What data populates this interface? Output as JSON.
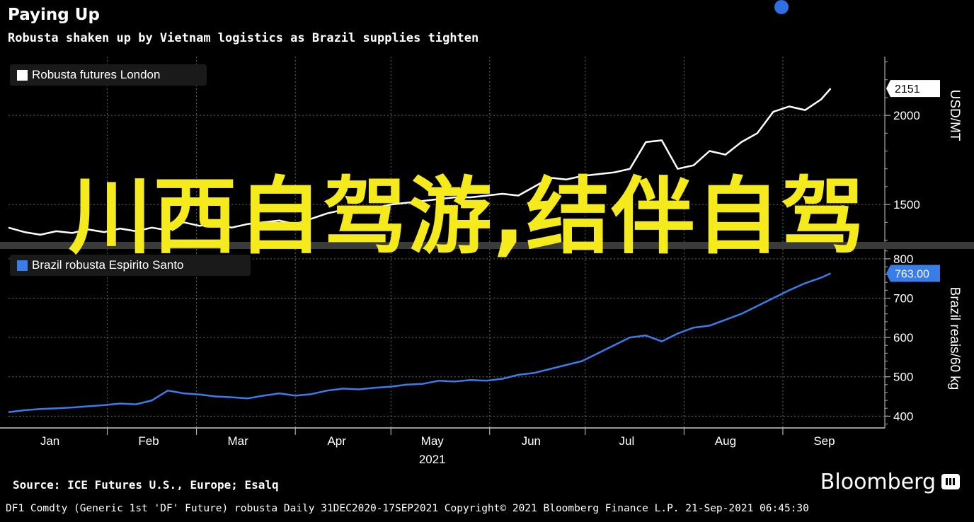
{
  "header": {
    "title": "Paying Up",
    "subtitle": "Robusta shaken up by Vietnam logistics as Brazil supplies tighten"
  },
  "chart_data": [
    {
      "type": "line",
      "panel": "top",
      "series": [
        {
          "name": "Robusta futures London",
          "color": "#ffffff",
          "x": [
            0,
            5,
            10,
            15,
            20,
            25,
            30,
            35,
            40,
            45,
            50,
            55,
            60,
            65,
            70,
            75,
            80,
            85,
            90,
            95,
            100,
            105,
            110,
            115,
            120,
            125,
            130,
            135,
            140,
            145,
            150,
            155,
            160,
            165,
            170,
            175,
            180,
            185,
            190,
            195,
            200,
            205,
            210,
            215,
            220,
            225,
            230,
            235,
            240,
            245,
            250,
            255,
            258
          ],
          "values": [
            1370,
            1345,
            1330,
            1350,
            1340,
            1360,
            1345,
            1365,
            1350,
            1370,
            1355,
            1400,
            1380,
            1395,
            1370,
            1390,
            1400,
            1410,
            1390,
            1420,
            1450,
            1470,
            1460,
            1480,
            1500,
            1510,
            1520,
            1530,
            1540,
            1540,
            1550,
            1560,
            1550,
            1600,
            1650,
            1640,
            1660,
            1670,
            1680,
            1700,
            1850,
            1860,
            1700,
            1720,
            1800,
            1780,
            1850,
            1900,
            2020,
            2050,
            2030,
            2090,
            2151
          ]
        }
      ],
      "ylabel": "USD/MT",
      "yticks": [
        1500,
        2000
      ],
      "ylim": [
        1290,
        2330
      ],
      "last_value_label": "2151",
      "legend": "top-left"
    },
    {
      "type": "line",
      "panel": "bottom",
      "series": [
        {
          "name": "Brazil robusta Espirito Santo",
          "color": "#3a7ce8",
          "x": [
            0,
            5,
            10,
            15,
            20,
            25,
            30,
            35,
            40,
            45,
            50,
            55,
            60,
            65,
            70,
            75,
            80,
            85,
            90,
            95,
            100,
            105,
            110,
            115,
            120,
            125,
            130,
            135,
            140,
            145,
            150,
            155,
            160,
            165,
            170,
            175,
            180,
            185,
            190,
            195,
            200,
            205,
            210,
            215,
            220,
            225,
            230,
            235,
            240,
            245,
            250,
            255,
            258
          ],
          "values": [
            410,
            415,
            418,
            420,
            422,
            425,
            428,
            432,
            430,
            440,
            465,
            458,
            455,
            450,
            448,
            445,
            452,
            458,
            452,
            456,
            465,
            470,
            468,
            472,
            475,
            480,
            482,
            490,
            488,
            492,
            490,
            495,
            505,
            510,
            520,
            530,
            540,
            560,
            580,
            600,
            605,
            590,
            610,
            625,
            630,
            645,
            660,
            680,
            700,
            720,
            738,
            752,
            763
          ]
        }
      ],
      "ylabel": "Brazil reais/60 kg",
      "yticks": [
        400,
        500,
        600,
        700,
        800
      ],
      "ylim": [
        370,
        825
      ],
      "last_value_label": "763.00",
      "legend": "top-left"
    }
  ],
  "x_axis": {
    "month_labels": [
      "Jan",
      "Feb",
      "Mar",
      "Apr",
      "May",
      "Jun",
      "Jul",
      "Aug",
      "Sep"
    ],
    "month_days": [
      13,
      44,
      72,
      103,
      133,
      164,
      194,
      225,
      256
    ],
    "month_starts": [
      0,
      31,
      59,
      90,
      120,
      151,
      181,
      212,
      243
    ],
    "year_label": "2021",
    "xlim": [
      0,
      275
    ]
  },
  "legend_labels": {
    "top": "Robusta futures London",
    "bottom": "Brazil robusta Espirito Santo"
  },
  "watermark": "川西自驾游,结伴自驾",
  "source": "Source: ICE Futures U.S., Europe; Esalq",
  "brand": "Bloomberg",
  "footer": "DF1 Comdty (Generic 1st 'DF' Future) robusta  Daily 31DEC2020-17SEP2021  Copyright© 2021 Bloomberg Finance L.P.  21-Sep-2021 06:45:30",
  "colors": {
    "background": "#000000",
    "top_line": "#ffffff",
    "bottom_line": "#3a7ce8",
    "watermark": "#f5ea1c",
    "accent_dot": "#2f6fe0"
  }
}
